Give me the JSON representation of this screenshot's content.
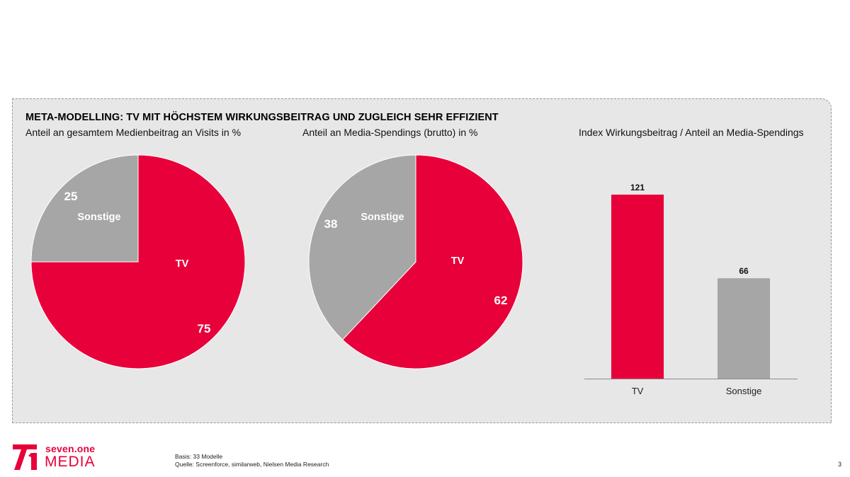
{
  "title": "META-MODELLING: TV MIT HÖCHSTEM WIRKUNGSBEITRAG UND ZUGLEICH SEHR EFFIZIENT",
  "colors": {
    "tv": "#e8003a",
    "sonstige": "#a6a6a6",
    "panel": "#e7e7e7"
  },
  "chart_data": [
    {
      "type": "pie",
      "title": "Anteil an gesamtem Medienbeitrag an Visits in %",
      "slices": [
        {
          "label": "TV",
          "value": 75
        },
        {
          "label": "Sonstige",
          "value": 25
        }
      ]
    },
    {
      "type": "pie",
      "title": "Anteil an Media-Spendings (brutto) in %",
      "slices": [
        {
          "label": "TV",
          "value": 62
        },
        {
          "label": "Sonstige",
          "value": 38
        }
      ]
    },
    {
      "type": "bar",
      "title": "Index Wirkungsbeitrag / Anteil an Media-Spendings",
      "categories": [
        "TV",
        "Sonstige"
      ],
      "values": [
        121,
        66
      ],
      "ylim": [
        0,
        140
      ]
    }
  ],
  "footer": {
    "brand_line1": "seven.one",
    "brand_line2": "MEDIA",
    "note_basis": "Basis: 33 Modelle",
    "note_source": "Quelle: Screenforce, similarweb, Nielsen Media Research",
    "page_number": "3"
  }
}
